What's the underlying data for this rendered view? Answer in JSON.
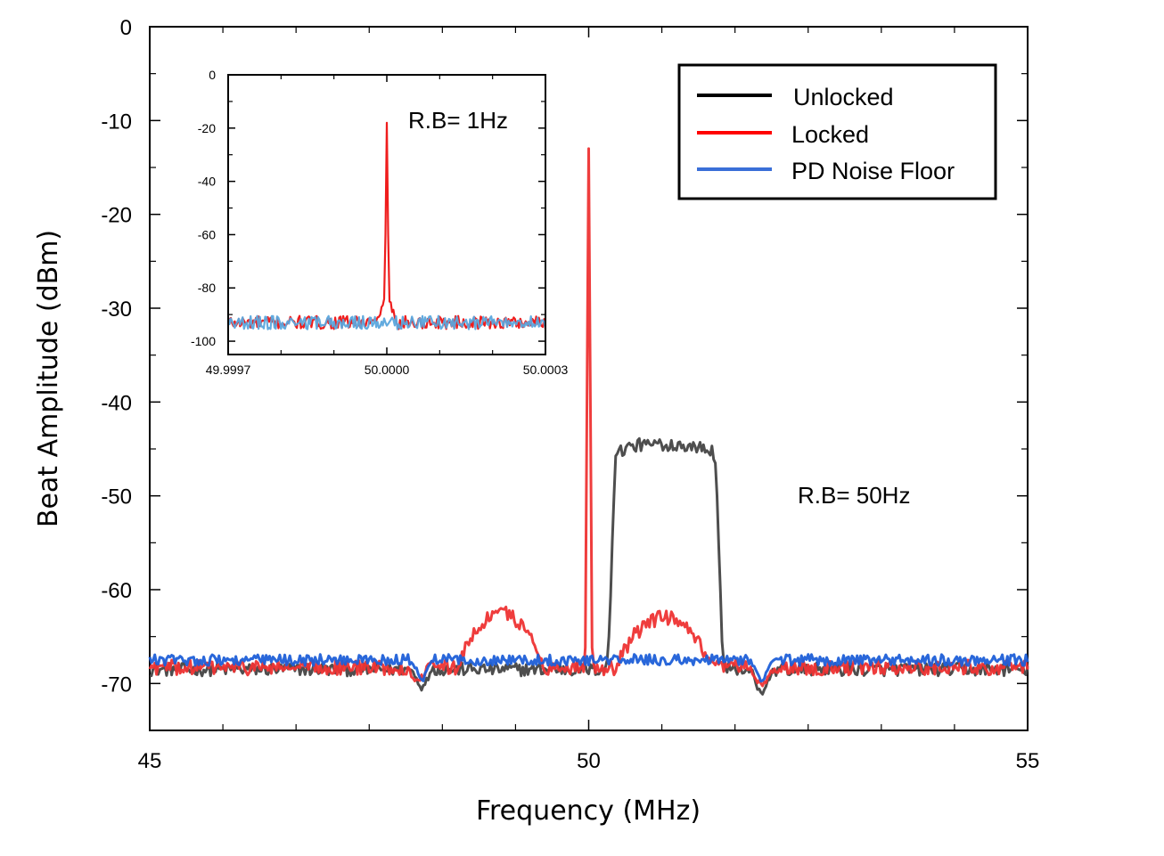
{
  "chart_data": [
    {
      "type": "line",
      "title": "",
      "xlabel": "Frequency (MHz)",
      "ylabel": "Beat Amplitude (dBm)",
      "xlim": [
        45,
        55
      ],
      "ylim": [
        -75,
        0
      ],
      "xticks": [
        45,
        50,
        55
      ],
      "xtick_labels": [
        "45",
        "50",
        "55"
      ],
      "yticks": [
        0,
        -10,
        -20,
        -30,
        -40,
        -50,
        -60,
        -70
      ],
      "ytick_labels": [
        "0",
        "-10",
        "-20",
        "-30",
        "-40",
        "-50",
        "-60",
        "-70"
      ],
      "annotation": "R.B= 50Hz",
      "legend": {
        "position": "top-right",
        "entries": [
          {
            "label": "Unlocked",
            "color": "#000000"
          },
          {
            "label": "Locked",
            "color": "#ff0000"
          },
          {
            "label": "PD Noise Floor",
            "color": "#3a6fd8"
          }
        ]
      },
      "series": [
        {
          "name": "Unlocked",
          "color": "#444444",
          "baseline": -68.5,
          "noise": 0.7,
          "features": [
            {
              "kind": "plateau",
              "x0": 50.2,
              "x1": 51.55,
              "edge": 0.12,
              "peak": -44.5
            },
            {
              "kind": "dip",
              "x": 48.1,
              "depth": -70.5
            },
            {
              "kind": "dip",
              "x": 51.97,
              "depth": -71.5
            }
          ]
        },
        {
          "name": "Locked",
          "color": "#ee3333",
          "baseline": -68.3,
          "noise": 0.8,
          "features": [
            {
              "kind": "spike",
              "x": 50.0,
              "peak": -13
            },
            {
              "kind": "hump",
              "x0": 48.5,
              "x1": 49.5,
              "peak": -62.5
            },
            {
              "kind": "hump",
              "x0": 50.3,
              "x1": 51.4,
              "peak": -63
            },
            {
              "kind": "dip",
              "x": 48.05,
              "depth": -70
            },
            {
              "kind": "dip",
              "x": 51.97,
              "depth": -70.5
            }
          ]
        },
        {
          "name": "PD Noise Floor",
          "color": "#1e5fd8",
          "baseline": -67.5,
          "noise": 0.6,
          "features": [
            {
              "kind": "dip",
              "x": 48.1,
              "depth": -69.8
            },
            {
              "kind": "dip",
              "x": 51.97,
              "depth": -70
            }
          ]
        }
      ]
    },
    {
      "type": "line",
      "title": "",
      "xlabel": "",
      "ylabel": "",
      "xlim": [
        49.9997,
        50.0003
      ],
      "ylim": [
        -105,
        0
      ],
      "xticks": [
        49.9997,
        50.0,
        50.0003
      ],
      "xtick_labels": [
        "49.9997",
        "50.0000",
        "50.0003"
      ],
      "yticks": [
        0,
        -20,
        -40,
        -60,
        -80,
        -100
      ],
      "ytick_labels": [
        "0",
        "-20",
        "-40",
        "-60",
        "-80",
        "-100"
      ],
      "annotation": "R.B= 1Hz",
      "series": [
        {
          "name": "Locked",
          "color": "#ee1111",
          "baseline": -93,
          "noise": 2.5,
          "features": [
            {
              "kind": "spike",
              "x": 50.0,
              "peak": -18,
              "width": 4e-06,
              "skirt": -85,
              "skirt_width": 2e-05
            }
          ]
        },
        {
          "name": "PD Noise Floor",
          "color": "#5ba7dd",
          "baseline": -93,
          "noise": 2.5,
          "features": []
        }
      ]
    }
  ]
}
